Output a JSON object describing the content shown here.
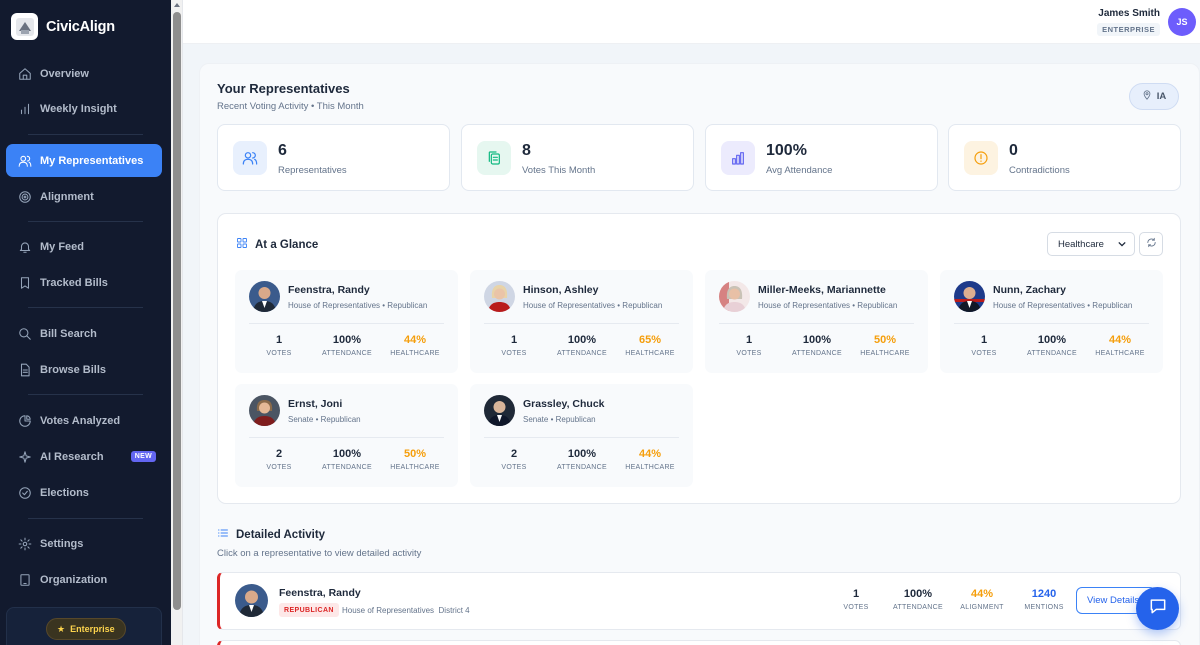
{
  "app": {
    "name": "CivicAlign"
  },
  "sidebar": {
    "items": [
      {
        "label": "Overview",
        "icon": "home-icon"
      },
      {
        "label": "Weekly Insight",
        "icon": "bar-chart-icon"
      },
      {
        "label": "My Representatives",
        "icon": "users-icon",
        "active": true
      },
      {
        "label": "Alignment",
        "icon": "target-icon"
      },
      {
        "label": "My Feed",
        "icon": "bell-icon"
      },
      {
        "label": "Tracked Bills",
        "icon": "bookmark-icon"
      },
      {
        "label": "Bill Search",
        "icon": "search-icon"
      },
      {
        "label": "Browse Bills",
        "icon": "document-icon"
      },
      {
        "label": "Votes Analyzed",
        "icon": "pie-chart-icon"
      },
      {
        "label": "AI Research",
        "icon": "sparkle-icon",
        "badge": "NEW"
      },
      {
        "label": "Elections",
        "icon": "check-circle-icon"
      },
      {
        "label": "Settings",
        "icon": "gear-icon"
      },
      {
        "label": "Organization",
        "icon": "building-icon"
      }
    ],
    "footer_plan": "Enterprise"
  },
  "header": {
    "user_name": "James Smith",
    "user_plan": "ENTERPRISE",
    "avatar_initials": "JS"
  },
  "page": {
    "title": "Your Representatives",
    "subtitle": "Recent Voting Activity • This Month",
    "state": "IA"
  },
  "stats": [
    {
      "value": "6",
      "label": "Representatives",
      "icon": "users-icon",
      "color": "#3b82f6"
    },
    {
      "value": "8",
      "label": "Votes This Month",
      "icon": "clipboard-icon",
      "color": "#10b981"
    },
    {
      "value": "100%",
      "label": "Avg Attendance",
      "icon": "bar-chart-icon",
      "color": "#6366f1"
    },
    {
      "value": "0",
      "label": "Contradictions",
      "icon": "alert-circle-icon",
      "color": "#f59e0b"
    }
  ],
  "glance": {
    "title": "At a Glance",
    "topic": "Healthcare",
    "stat_labels": [
      "VOTES",
      "ATTENDANCE",
      "HEALTHCARE"
    ],
    "reps": [
      {
        "name": "Feenstra, Randy",
        "meta": "House of Representatives • Republican",
        "votes": "1",
        "attendance": "100%",
        "topic": "44%"
      },
      {
        "name": "Hinson, Ashley",
        "meta": "House of Representatives • Republican",
        "votes": "1",
        "attendance": "100%",
        "topic": "65%"
      },
      {
        "name": "Miller-Meeks, Mariannette",
        "meta": "House of Representatives • Republican",
        "votes": "1",
        "attendance": "100%",
        "topic": "50%"
      },
      {
        "name": "Nunn, Zachary",
        "meta": "House of Representatives • Republican",
        "votes": "1",
        "attendance": "100%",
        "topic": "44%"
      },
      {
        "name": "Ernst, Joni",
        "meta": "Senate • Republican",
        "votes": "2",
        "attendance": "100%",
        "topic": "50%"
      },
      {
        "name": "Grassley, Chuck",
        "meta": "Senate • Republican",
        "votes": "2",
        "attendance": "100%",
        "topic": "44%"
      }
    ]
  },
  "detail": {
    "title": "Detailed Activity",
    "subtitle": "Click on a representative to view detailed activity",
    "rows": [
      {
        "name": "Feenstra, Randy",
        "party": "REPUBLICAN",
        "chamber": "House of Representatives",
        "district": "District 4",
        "votes": "1",
        "attendance": "100%",
        "alignment": "44%",
        "mentions": "1240",
        "labels": [
          "VOTES",
          "ATTENDANCE",
          "ALIGNMENT",
          "MENTIONS"
        ],
        "button": "View Details"
      }
    ]
  }
}
